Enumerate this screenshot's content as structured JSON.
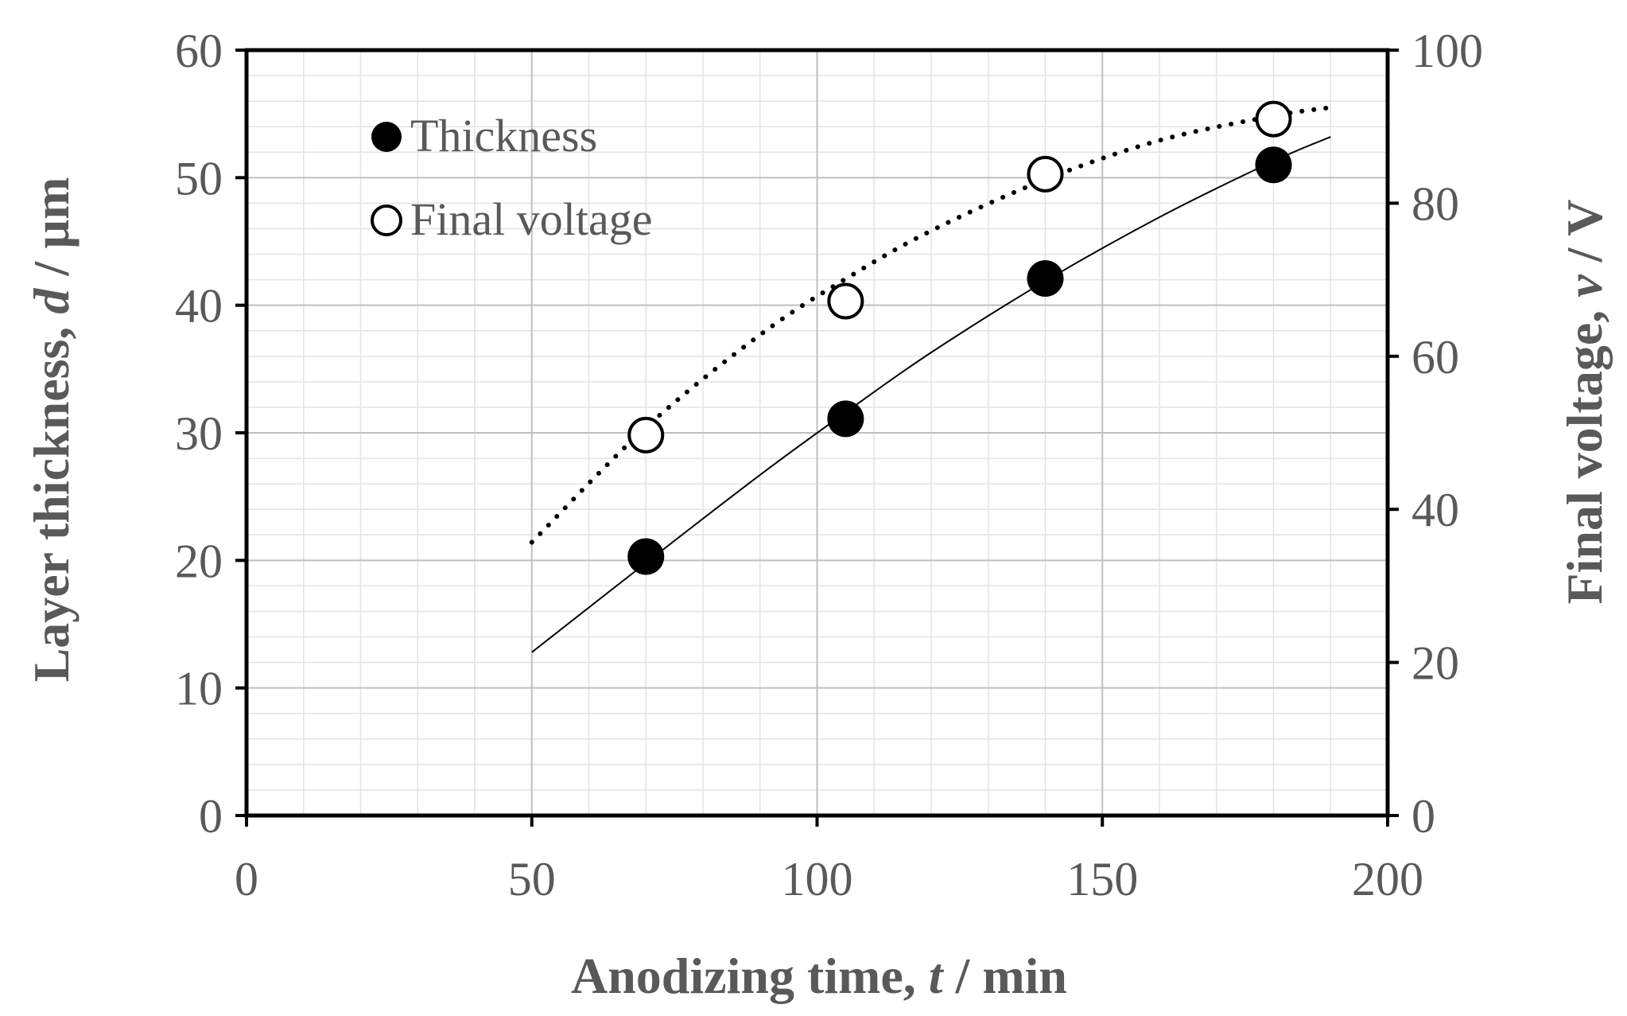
{
  "chart_data": {
    "type": "scatter",
    "xlabel": {
      "prefix": "Anodizing time, ",
      "var": "t",
      "suffix": " / min"
    },
    "ylabel_left": {
      "prefix": "Layer thickness, ",
      "var": "d",
      "suffix": " / µm"
    },
    "ylabel_right": {
      "prefix": "Final voltage, ",
      "var": "v",
      "suffix": " / V"
    },
    "xlim": [
      0,
      200
    ],
    "ylim_left": [
      0,
      60
    ],
    "ylim_right": [
      0,
      100
    ],
    "x_ticks": [
      0,
      50,
      100,
      150,
      200
    ],
    "y_left_ticks": [
      0,
      10,
      20,
      30,
      40,
      50,
      60
    ],
    "y_right_ticks": [
      0,
      20,
      40,
      60,
      80,
      100
    ],
    "grid": true,
    "legend_position": "top-left",
    "series": [
      {
        "name": "Thickness",
        "axis": "left",
        "marker": "filled-circle",
        "x": [
          70,
          105,
          140,
          180
        ],
        "y": [
          20.3,
          31.1,
          42.1,
          51.0
        ],
        "trendline": {
          "style": "solid",
          "x": [
            50,
            70,
            90,
            105,
            120,
            140,
            160,
            180,
            190
          ],
          "y": [
            12.8,
            19.8,
            26.7,
            31.6,
            36.3,
            41.9,
            46.9,
            51.3,
            53.2
          ]
        }
      },
      {
        "name": "Final voltage",
        "axis": "right",
        "marker": "open-circle",
        "x": [
          70,
          105,
          140,
          180
        ],
        "y": [
          49.7,
          67.2,
          83.8,
          91.0
        ],
        "trendline": {
          "style": "dotted",
          "x": [
            50,
            70,
            90,
            105,
            120,
            140,
            160,
            180,
            190
          ],
          "y": [
            35.7,
            50.7,
            62.8,
            70.1,
            76.4,
            83.1,
            88.2,
            91.4,
            92.5
          ]
        }
      }
    ]
  }
}
